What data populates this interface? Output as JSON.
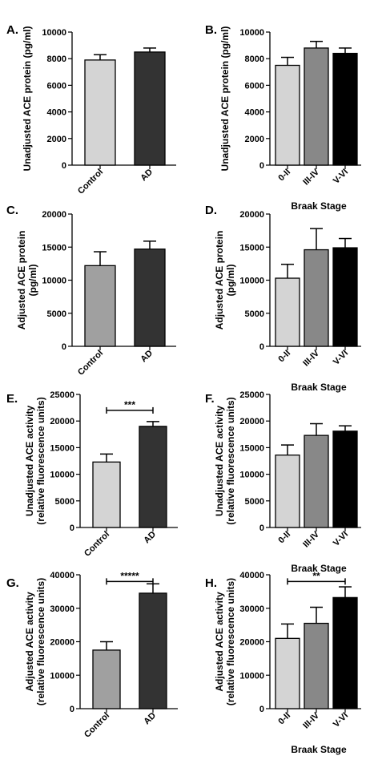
{
  "figure": {
    "background": "#ffffff"
  },
  "chart_data": [
    {
      "panel": "A.",
      "type": "bar",
      "categories": [
        "Control",
        "AD"
      ],
      "values": [
        7900,
        8500
      ],
      "errors": [
        400,
        300
      ],
      "colors": [
        "#d4d4d4",
        "#333333"
      ],
      "ylabel_lines": [
        "Unadjusted ACE protein (pg/ml)"
      ],
      "xlabel": "",
      "ylim": [
        0,
        10000
      ],
      "yticks": [
        0,
        2000,
        4000,
        6000,
        8000,
        10000
      ],
      "significance": null
    },
    {
      "panel": "B.",
      "type": "bar",
      "categories": [
        "0-II",
        "III-IV",
        "V-VI"
      ],
      "values": [
        7500,
        8800,
        8400
      ],
      "errors": [
        600,
        500,
        400
      ],
      "colors": [
        "#d4d4d4",
        "#888888",
        "#000000"
      ],
      "ylabel_lines": [
        "Unadjusted ACE protein (pg/ml)"
      ],
      "xlabel": "Braak Stage",
      "ylim": [
        0,
        10000
      ],
      "yticks": [
        0,
        2000,
        4000,
        6000,
        8000,
        10000
      ],
      "significance": null
    },
    {
      "panel": "C.",
      "type": "bar",
      "categories": [
        "Control",
        "AD"
      ],
      "values": [
        12200,
        14700
      ],
      "errors": [
        2100,
        1200
      ],
      "colors": [
        "#a0a0a0",
        "#333333"
      ],
      "ylabel_lines": [
        "Adjusted ACE protein",
        "(pg/ml)"
      ],
      "xlabel": "",
      "ylim": [
        0,
        20000
      ],
      "yticks": [
        0,
        5000,
        10000,
        15000,
        20000
      ],
      "significance": null
    },
    {
      "panel": "D.",
      "type": "bar",
      "categories": [
        "0-II",
        "III-IV",
        "V-VI"
      ],
      "values": [
        10300,
        14600,
        14900
      ],
      "errors": [
        2100,
        3200,
        1400
      ],
      "colors": [
        "#d4d4d4",
        "#888888",
        "#000000"
      ],
      "ylabel_lines": [
        "Adjusted ACE protein",
        "(pg/ml)"
      ],
      "xlabel": "Braak Stage",
      "ylim": [
        0,
        20000
      ],
      "yticks": [
        0,
        5000,
        10000,
        15000,
        20000
      ],
      "significance": null
    },
    {
      "panel": "E.",
      "type": "bar",
      "categories": [
        "Control",
        "AD"
      ],
      "values": [
        12300,
        19000
      ],
      "errors": [
        1500,
        900
      ],
      "colors": [
        "#d4d4d4",
        "#333333"
      ],
      "ylabel_lines": [
        "Unadjusted ACE activity",
        "(relative fluorescence units)"
      ],
      "xlabel": "",
      "ylim": [
        0,
        25000
      ],
      "yticks": [
        0,
        5000,
        10000,
        15000,
        20000,
        25000
      ],
      "significance": {
        "label": "***",
        "from": 0,
        "to": 1,
        "y": 22000
      }
    },
    {
      "panel": "F.",
      "type": "bar",
      "categories": [
        "0-II",
        "III-IV",
        "V-VI"
      ],
      "values": [
        13600,
        17300,
        18100
      ],
      "errors": [
        1900,
        2200,
        1000
      ],
      "colors": [
        "#d4d4d4",
        "#888888",
        "#000000"
      ],
      "ylabel_lines": [
        "Unadjusted ACE activity",
        "(relative fluorescence units)"
      ],
      "xlabel": "Braak Stage",
      "ylim": [
        0,
        25000
      ],
      "yticks": [
        0,
        5000,
        10000,
        15000,
        20000,
        25000
      ],
      "significance": null
    },
    {
      "panel": "G.",
      "type": "bar",
      "categories": [
        "Control",
        "AD"
      ],
      "values": [
        17500,
        34500
      ],
      "errors": [
        2500,
        2800
      ],
      "colors": [
        "#a0a0a0",
        "#333333"
      ],
      "ylabel_lines": [
        "Adjusted ACE activity",
        "(relative fluorescence units)"
      ],
      "xlabel": "",
      "ylim": [
        0,
        40000
      ],
      "yticks": [
        0,
        10000,
        20000,
        30000,
        40000
      ],
      "significance": {
        "label": "*****",
        "from": 0,
        "to": 1,
        "y": 38000
      }
    },
    {
      "panel": "H.",
      "type": "bar",
      "categories": [
        "0-II",
        "III-IV",
        "V-VI"
      ],
      "values": [
        21000,
        25500,
        33200
      ],
      "errors": [
        4300,
        4800,
        3200
      ],
      "colors": [
        "#d4d4d4",
        "#888888",
        "#000000"
      ],
      "ylabel_lines": [
        "Adjusted ACE activity",
        "(relative fluorescence units)"
      ],
      "xlabel": "Braak Stage",
      "ylim": [
        0,
        40000
      ],
      "yticks": [
        0,
        10000,
        20000,
        30000,
        40000
      ],
      "significance": {
        "label": "**",
        "from": 0,
        "to": 2,
        "y": 38000
      }
    }
  ]
}
